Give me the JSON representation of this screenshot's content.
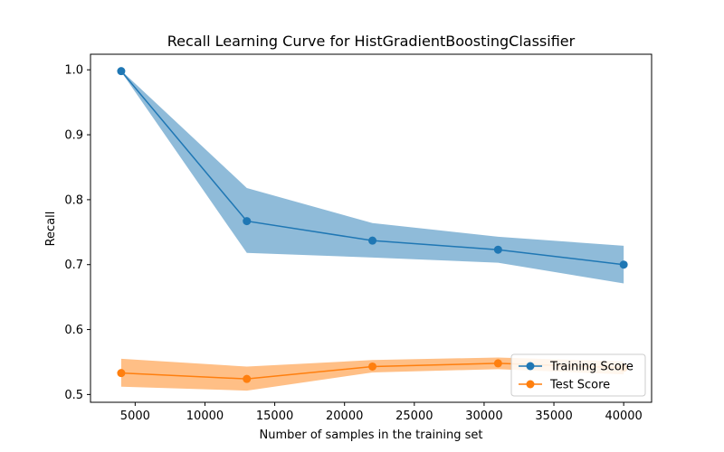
{
  "chart_data": {
    "type": "line",
    "title": "Recall Learning Curve for HistGradientBoostingClassifier",
    "xlabel": "Number of samples in the training set",
    "ylabel": "Recall",
    "xlim": [
      1800,
      42000
    ],
    "ylim": [
      0.488,
      1.024
    ],
    "xticks": [
      5000,
      10000,
      15000,
      20000,
      25000,
      30000,
      35000,
      40000
    ],
    "yticks": [
      0.5,
      0.6,
      0.7,
      0.8,
      0.9,
      1.0
    ],
    "xtick_labels": [
      "5000",
      "10000",
      "15000",
      "20000",
      "25000",
      "30000",
      "35000",
      "40000"
    ],
    "ytick_labels": [
      "0.5",
      "0.6",
      "0.7",
      "0.8",
      "0.9",
      "1.0"
    ],
    "grid": false,
    "legend_position": "bottom-right",
    "x": [
      4000,
      13000,
      22000,
      31000,
      40000
    ],
    "series": [
      {
        "name": "Training Score",
        "color": "#1f77b4",
        "band_color": "#1f77b4",
        "values": [
          0.998,
          0.767,
          0.737,
          0.723,
          0.7
        ],
        "lower": [
          0.997,
          0.718,
          0.711,
          0.703,
          0.671
        ],
        "upper": [
          0.999,
          0.818,
          0.764,
          0.743,
          0.729
        ]
      },
      {
        "name": "Test Score",
        "color": "#ff7f0e",
        "band_color": "#ff7f0e",
        "values": [
          0.533,
          0.524,
          0.543,
          0.548,
          0.541
        ],
        "lower": [
          0.512,
          0.506,
          0.534,
          0.539,
          0.531
        ],
        "upper": [
          0.555,
          0.543,
          0.553,
          0.557,
          0.551
        ]
      }
    ]
  }
}
